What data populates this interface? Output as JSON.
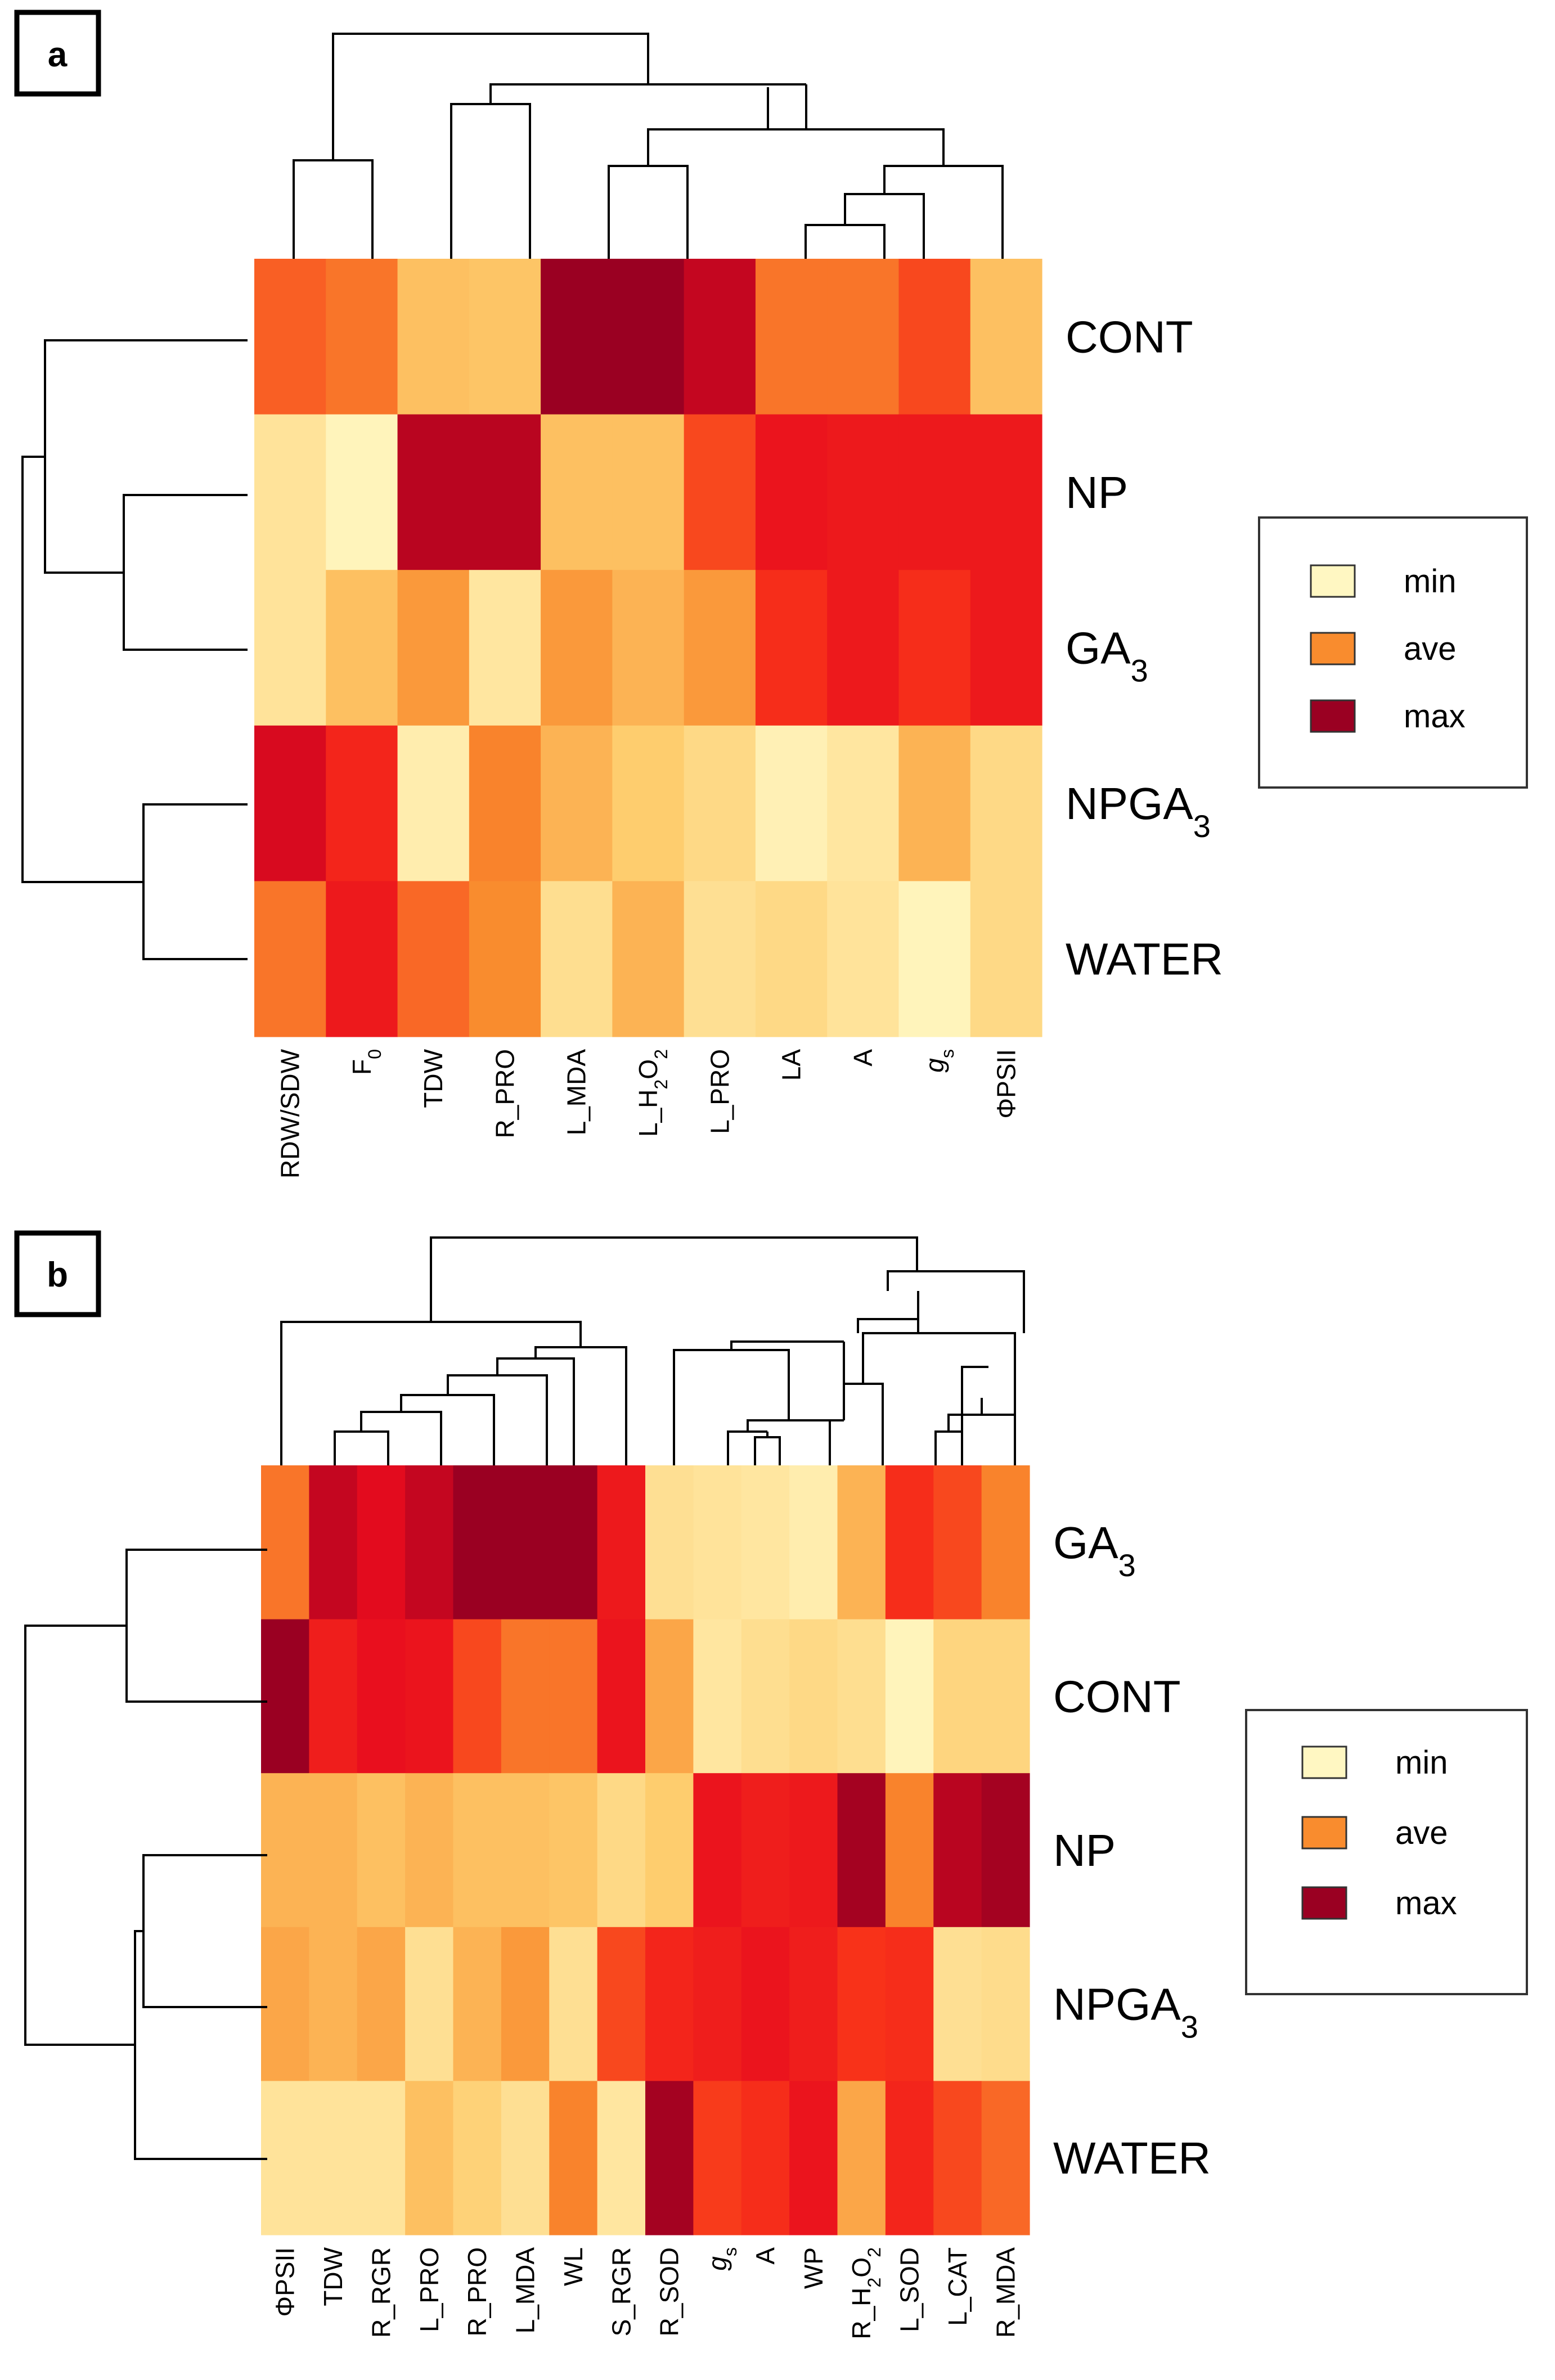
{
  "chart_data": [
    {
      "panel": "a",
      "type": "heatmap",
      "columns": [
        "RDW/SDW",
        "F_0",
        "TDW",
        "R_PRO",
        "L_MDA",
        "L_H2O2",
        "L_PRO",
        "LA",
        "A",
        "g_s",
        "ΦPSII"
      ],
      "rows": [
        "CONT",
        "NP",
        "GA3",
        "NPGA3",
        "WATER"
      ],
      "levels": [
        [
          0.6,
          0.55,
          0.3,
          0.28,
          1.0,
          1.0,
          0.92,
          0.55,
          0.55,
          0.65,
          0.3
        ],
        [
          0.12,
          0.02,
          0.94,
          0.94,
          0.3,
          0.3,
          0.65,
          0.82,
          0.8,
          0.8,
          0.8
        ],
        [
          0.12,
          0.3,
          0.45,
          0.1,
          0.45,
          0.35,
          0.45,
          0.72,
          0.8,
          0.72,
          0.8
        ],
        [
          0.88,
          0.75,
          0.06,
          0.52,
          0.35,
          0.25,
          0.18,
          0.04,
          0.1,
          0.35,
          0.18
        ],
        [
          0.55,
          0.8,
          0.58,
          0.5,
          0.15,
          0.35,
          0.14,
          0.18,
          0.12,
          0.02,
          0.18
        ]
      ],
      "legend": [
        {
          "label": "min",
          "color": "#FFF7C2"
        },
        {
          "label": "ave",
          "color": "#F98C2E"
        },
        {
          "label": "max",
          "color": "#9A0022"
        }
      ]
    },
    {
      "panel": "b",
      "type": "heatmap",
      "columns": [
        "ΦPSII",
        "TDW",
        "R_RGR",
        "L_PRO",
        "R_PRO",
        "L_MDA",
        "WL",
        "S_RGR",
        "R_SOD",
        "g_s",
        "A",
        "WP",
        "R_H2O2",
        "L_SOD",
        "L_CAT",
        "R_MDA"
      ],
      "rows": [
        "GA3",
        "CONT",
        "NP",
        "NPGA3",
        "WATER"
      ],
      "levels": [
        [
          0.55,
          0.92,
          0.86,
          0.92,
          1.0,
          1.0,
          1.0,
          0.8,
          0.14,
          0.12,
          0.1,
          0.06,
          0.35,
          0.72,
          0.65,
          0.52
        ],
        [
          1.0,
          0.78,
          0.84,
          0.82,
          0.65,
          0.55,
          0.55,
          0.82,
          0.4,
          0.1,
          0.15,
          0.18,
          0.15,
          0.02,
          0.2,
          0.2
        ],
        [
          0.35,
          0.35,
          0.3,
          0.35,
          0.3,
          0.3,
          0.28,
          0.18,
          0.25,
          0.82,
          0.78,
          0.8,
          0.98,
          0.52,
          0.94,
          0.98
        ],
        [
          0.4,
          0.35,
          0.4,
          0.14,
          0.35,
          0.45,
          0.14,
          0.65,
          0.75,
          0.78,
          0.82,
          0.78,
          0.7,
          0.72,
          0.14,
          0.16
        ],
        [
          0.12,
          0.12,
          0.12,
          0.3,
          0.22,
          0.14,
          0.52,
          0.1,
          0.98,
          0.68,
          0.72,
          0.82,
          0.4,
          0.75,
          0.65,
          0.58
        ]
      ],
      "legend": [
        {
          "label": "min",
          "color": "#FFF7C2"
        },
        {
          "label": "ave",
          "color": "#F98C2E"
        },
        {
          "label": "max",
          "color": "#9A0022"
        }
      ]
    }
  ]
}
